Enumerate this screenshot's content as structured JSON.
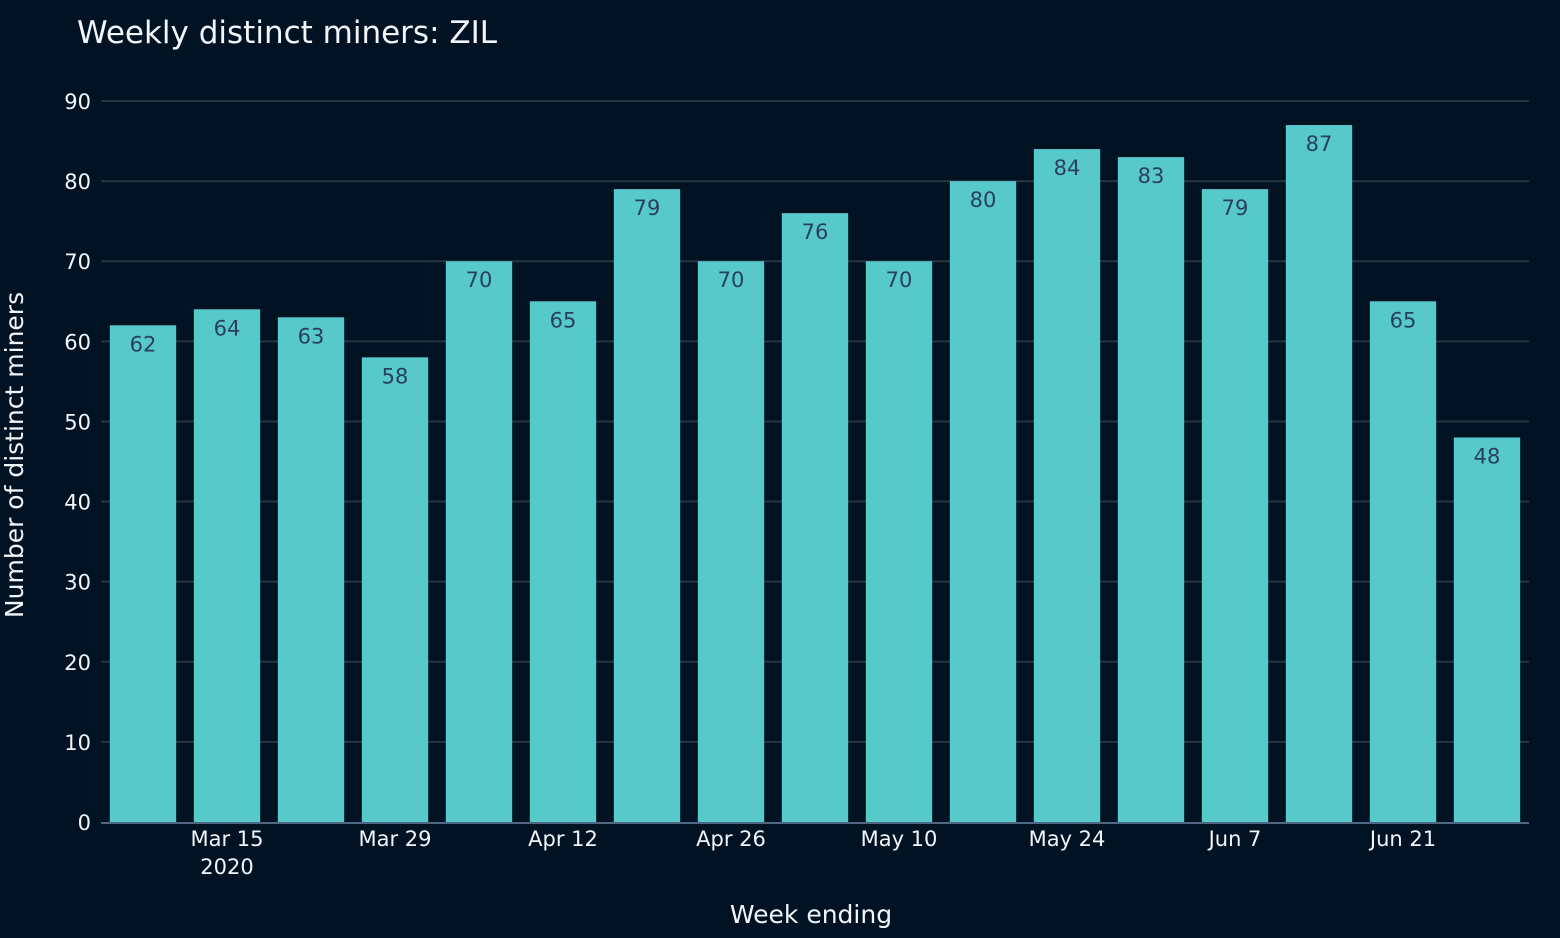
{
  "chart_data": {
    "type": "bar",
    "title": "Weekly distinct miners: ZIL",
    "xlabel": "Week ending",
    "ylabel": "Number of distinct miners",
    "x": [
      "2020-03-08",
      "2020-03-15",
      "2020-03-22",
      "2020-03-29",
      "2020-04-05",
      "2020-04-12",
      "2020-04-19",
      "2020-04-26",
      "2020-05-03",
      "2020-05-10",
      "2020-05-17",
      "2020-05-24",
      "2020-05-31",
      "2020-06-07",
      "2020-06-14",
      "2020-06-21",
      "2020-06-28"
    ],
    "values": [
      62,
      64,
      63,
      58,
      70,
      65,
      79,
      70,
      76,
      70,
      80,
      84,
      83,
      79,
      87,
      65,
      48
    ],
    "ylim": [
      0,
      90
    ],
    "yticks": [
      0,
      10,
      20,
      30,
      40,
      50,
      60,
      70,
      80,
      90
    ],
    "xticks": [
      {
        "label": "Mar 15",
        "sublabel": "2020",
        "at": "2020-03-15"
      },
      {
        "label": "Mar 29",
        "sublabel": "",
        "at": "2020-03-29"
      },
      {
        "label": "Apr 12",
        "sublabel": "",
        "at": "2020-04-12"
      },
      {
        "label": "Apr 26",
        "sublabel": "",
        "at": "2020-04-26"
      },
      {
        "label": "May 10",
        "sublabel": "",
        "at": "2020-05-10"
      },
      {
        "label": "May 24",
        "sublabel": "",
        "at": "2020-05-24"
      },
      {
        "label": "Jun 7",
        "sublabel": "",
        "at": "2020-06-07"
      },
      {
        "label": "Jun 21",
        "sublabel": "",
        "at": "2020-06-21"
      }
    ],
    "data_labels": true,
    "grid": true,
    "legend": "none",
    "colors": {
      "background": "#011323",
      "bar": "#57c9cb",
      "grid": "#283442",
      "text": "#f2f5fa",
      "data_label": "#2a3f5f"
    }
  }
}
